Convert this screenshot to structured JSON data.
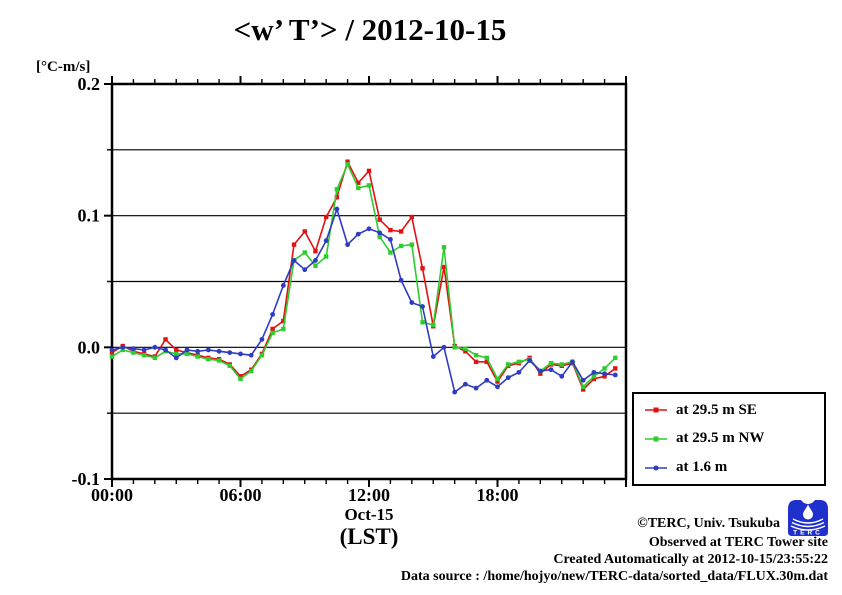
{
  "title": "<w’ T’> / 2012-10-15",
  "unit_label": "[°C-m/s]",
  "x_axis": {
    "date_label": "Oct-15",
    "timezone_label": "(LST)"
  },
  "legend": {
    "items": [
      {
        "label": "at 29.5 m SE",
        "color": "#e11212"
      },
      {
        "label": "at 29.5 m NW",
        "color": "#2ecc2e"
      },
      {
        "label": "at 1.6 m",
        "color": "#2f3bc3"
      }
    ]
  },
  "footer": {
    "credit": "©TERC, Univ. Tsukuba",
    "observed": "Observed at TERC Tower site",
    "created": "Created Automatically at 2012-10-15/23:55:22",
    "data_source": "Data source : /home/hojyo/new/TERC-data/sorted_data/FLUX.30m.dat",
    "logo_text": "TERC",
    "logo_color": "#2030cc"
  },
  "chart_data": {
    "type": "line",
    "title": "<w’ T’> / 2012-10-15",
    "xlabel": "Oct-15 (LST)",
    "ylabel": "[°C-m/s]",
    "xlim_hours": [
      0,
      24
    ],
    "ylim": [
      -0.1,
      0.2
    ],
    "grid_interval": 0.05,
    "x_minor_tick_hours": 1,
    "x_major_ticks": [
      {
        "hour": 0,
        "label": "00:00"
      },
      {
        "hour": 6,
        "label": "06:00"
      },
      {
        "hour": 12,
        "label": "12:00"
      },
      {
        "hour": 18,
        "label": "18:00"
      }
    ],
    "y_ticks": [
      {
        "value": 0.2,
        "label": "0.2"
      },
      {
        "value": 0.1,
        "label": "0.1"
      },
      {
        "value": 0.0,
        "label": "0.0"
      },
      {
        "value": -0.1,
        "label": "-0.1"
      }
    ],
    "x_hours": [
      0,
      0.5,
      1,
      1.5,
      2,
      2.5,
      3,
      3.5,
      4,
      4.5,
      5,
      5.5,
      6,
      6.5,
      7,
      7.5,
      8,
      8.5,
      9,
      9.5,
      10,
      10.5,
      11,
      11.5,
      12,
      12.5,
      13,
      13.5,
      14,
      14.5,
      15,
      15.5,
      16,
      16.5,
      17,
      17.5,
      18,
      18.5,
      19,
      19.5,
      20,
      20.5,
      21,
      21.5,
      22,
      22.5,
      23,
      23.5
    ],
    "series": [
      {
        "name": "at 29.5 m SE",
        "color": "#e11212",
        "marker": "square",
        "values": [
          -0.004,
          0.001,
          -0.003,
          -0.005,
          -0.007,
          0.006,
          -0.002,
          -0.004,
          -0.006,
          -0.008,
          -0.009,
          -0.013,
          -0.022,
          -0.017,
          -0.005,
          0.014,
          0.02,
          0.078,
          0.088,
          0.073,
          0.099,
          0.114,
          0.141,
          0.125,
          0.134,
          0.097,
          0.089,
          0.088,
          0.099,
          0.06,
          0.016,
          0.061,
          0.001,
          -0.003,
          -0.011,
          -0.011,
          -0.026,
          -0.014,
          -0.012,
          -0.008,
          -0.02,
          -0.013,
          -0.014,
          -0.012,
          -0.032,
          -0.024,
          -0.022,
          -0.016
        ]
      },
      {
        "name": "at 29.5 m NW",
        "color": "#2ecc2e",
        "marker": "square",
        "values": [
          -0.007,
          -0.002,
          -0.004,
          -0.006,
          -0.008,
          -0.003,
          -0.005,
          -0.005,
          -0.007,
          -0.009,
          -0.01,
          -0.014,
          -0.024,
          -0.018,
          -0.006,
          0.011,
          0.014,
          0.066,
          0.072,
          0.062,
          0.069,
          0.12,
          0.139,
          0.121,
          0.123,
          0.084,
          0.072,
          0.077,
          0.078,
          0.019,
          0.017,
          0.076,
          0.0,
          -0.001,
          -0.006,
          -0.008,
          -0.024,
          -0.013,
          -0.011,
          -0.009,
          -0.018,
          -0.012,
          -0.013,
          -0.011,
          -0.03,
          -0.022,
          -0.016,
          -0.008
        ]
      },
      {
        "name": "at 1.6 m",
        "color": "#2f3bc3",
        "marker": "circle",
        "values": [
          -0.002,
          0.0,
          -0.001,
          -0.002,
          0.0,
          -0.002,
          -0.008,
          -0.002,
          -0.003,
          -0.002,
          -0.003,
          -0.004,
          -0.005,
          -0.006,
          0.006,
          0.025,
          0.047,
          0.066,
          0.059,
          0.066,
          0.081,
          0.105,
          0.078,
          0.086,
          0.09,
          0.087,
          0.082,
          0.051,
          0.034,
          0.031,
          -0.007,
          0.0,
          -0.034,
          -0.028,
          -0.031,
          -0.025,
          -0.03,
          -0.023,
          -0.019,
          -0.01,
          -0.018,
          -0.017,
          -0.022,
          -0.011,
          -0.025,
          -0.019,
          -0.02,
          -0.021
        ]
      }
    ]
  }
}
